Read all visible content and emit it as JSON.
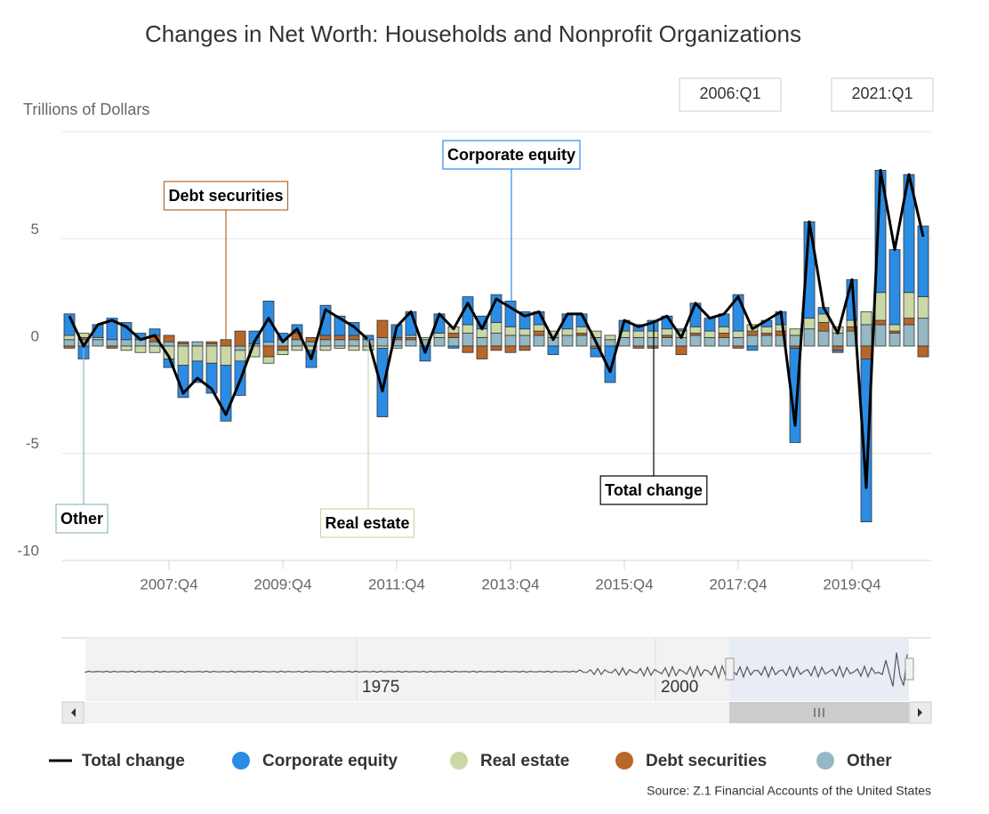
{
  "chart_data": {
    "type": "bar",
    "stacked": true,
    "title": "Changes in Net Worth: Households and Nonprofit Organizations",
    "y_axis_label": "Trillions of Dollars",
    "source": "Source: Z.1 Financial Accounts of the United States",
    "range_selector": {
      "from": "2006:Q1",
      "to": "2021:Q1"
    },
    "navigator": {
      "labels": [
        "1975",
        "2000"
      ]
    },
    "categories": [
      null,
      null,
      null,
      null,
      null,
      null,
      null,
      "2007:Q4",
      null,
      null,
      null,
      null,
      null,
      null,
      null,
      "2009:Q4",
      null,
      null,
      null,
      null,
      null,
      null,
      null,
      "2011:Q4",
      null,
      null,
      null,
      null,
      null,
      null,
      null,
      "2013:Q4",
      null,
      null,
      null,
      null,
      null,
      null,
      null,
      "2015:Q4",
      null,
      null,
      null,
      null,
      null,
      null,
      null,
      "2017:Q4",
      null,
      null,
      null,
      null,
      null,
      null,
      null,
      "2019:Q4",
      null,
      null,
      null,
      null,
      null
    ],
    "ylim": [
      -10,
      10
    ],
    "yticks": [
      -10,
      -5,
      0,
      5
    ],
    "grid": true,
    "legend": "bottom",
    "series": [
      {
        "name": "Total change",
        "type": "line",
        "color": "#000000",
        "values": [
          1.4,
          0.0,
          1.0,
          1.2,
          0.9,
          0.3,
          0.5,
          -0.5,
          -2.2,
          -1.5,
          -2.0,
          -3.2,
          -1.6,
          0.2,
          1.3,
          0.2,
          0.8,
          -0.6,
          1.7,
          1.3,
          0.9,
          0.3,
          -2.1,
          0.9,
          1.6,
          -0.3,
          1.5,
          0.8,
          2.0,
          0.8,
          2.2,
          1.8,
          1.4,
          1.6,
          0.3,
          1.5,
          1.5,
          0.2,
          -1.2,
          1.2,
          0.9,
          1.1,
          1.4,
          0.4,
          2.0,
          1.3,
          1.5,
          2.3,
          0.8,
          1.2,
          1.6,
          -3.7,
          5.8,
          1.8,
          0.6,
          3.1,
          -6.6,
          8.2,
          4.5,
          8.0,
          5.1
        ]
      },
      {
        "name": "Corporate equity",
        "type": "bar",
        "color": "#2b8ce3",
        "values": [
          1.0,
          -0.6,
          0.6,
          1.0,
          0.8,
          0.3,
          0.3,
          -0.4,
          -1.5,
          -1.0,
          -1.4,
          -2.6,
          -1.6,
          0.6,
          1.9,
          0.3,
          0.4,
          -0.8,
          1.4,
          0.9,
          0.6,
          0.2,
          -3.2,
          0.6,
          1.1,
          -0.7,
          0.9,
          -0.1,
          1.3,
          0.6,
          1.3,
          1.2,
          0.8,
          0.6,
          -0.4,
          0.7,
          0.6,
          -0.4,
          -1.7,
          0.5,
          0.3,
          0.5,
          0.6,
          0.1,
          1.1,
          0.6,
          0.6,
          1.7,
          -0.2,
          0.3,
          0.6,
          -4.4,
          4.5,
          0.3,
          -0.1,
          1.9,
          -7.6,
          5.7,
          3.5,
          5.5,
          3.3
        ]
      },
      {
        "name": "Real estate",
        "type": "bar",
        "color": "#c9d8a6",
        "values": [
          0.2,
          0.2,
          0.1,
          0.0,
          -0.2,
          -0.3,
          -0.3,
          -0.6,
          -0.9,
          -0.7,
          -0.8,
          -0.9,
          -0.5,
          -0.5,
          -0.3,
          -0.2,
          -0.2,
          -0.2,
          -0.2,
          -0.1,
          -0.2,
          -0.2,
          -0.1,
          -0.1,
          0.1,
          0.1,
          0.2,
          0.3,
          0.4,
          0.4,
          0.5,
          0.4,
          0.3,
          0.3,
          0.3,
          0.3,
          0.3,
          0.3,
          0.2,
          0.3,
          0.3,
          0.3,
          0.3,
          0.3,
          0.3,
          0.3,
          0.3,
          0.3,
          0.3,
          0.3,
          0.3,
          0.3,
          0.5,
          0.4,
          0.3,
          0.3,
          0.6,
          1.3,
          0.3,
          1.2,
          1.0
        ]
      },
      {
        "name": "Debt securities",
        "type": "bar",
        "color": "#b8672a",
        "values": [
          -0.1,
          0.1,
          0.0,
          -0.1,
          0.0,
          0.0,
          0.3,
          0.3,
          0.1,
          0.0,
          0.1,
          0.3,
          0.7,
          0.0,
          -0.5,
          -0.2,
          0.3,
          0.2,
          0.2,
          0.2,
          0.2,
          0.0,
          0.8,
          0.1,
          0.1,
          0.0,
          0.0,
          0.2,
          -0.3,
          -0.6,
          -0.2,
          -0.3,
          -0.2,
          0.2,
          0.0,
          0.0,
          0.1,
          -0.1,
          0.0,
          0.0,
          -0.1,
          -0.1,
          0.1,
          -0.4,
          0.1,
          0.0,
          0.2,
          -0.1,
          0.2,
          0.1,
          0.2,
          -0.1,
          0.0,
          0.4,
          -0.2,
          0.2,
          -0.6,
          0.2,
          0.1,
          0.3,
          -0.5
        ]
      },
      {
        "name": "Other",
        "type": "bar",
        "color": "#94b8c4",
        "values": [
          0.3,
          0.3,
          0.3,
          0.3,
          0.3,
          0.3,
          0.2,
          0.2,
          0.1,
          0.2,
          0.1,
          0.0,
          -0.2,
          0.1,
          0.2,
          0.3,
          0.3,
          0.2,
          0.3,
          0.3,
          0.3,
          0.3,
          0.4,
          0.3,
          0.3,
          0.3,
          0.4,
          0.4,
          0.6,
          0.4,
          0.6,
          0.5,
          0.5,
          0.5,
          0.4,
          0.5,
          0.5,
          0.4,
          0.3,
          0.4,
          0.4,
          0.4,
          0.4,
          0.4,
          0.5,
          0.4,
          0.4,
          0.4,
          0.5,
          0.5,
          0.5,
          0.5,
          0.8,
          0.7,
          0.6,
          0.7,
          1.0,
          1.0,
          0.6,
          1.0,
          1.3
        ]
      }
    ]
  }
}
